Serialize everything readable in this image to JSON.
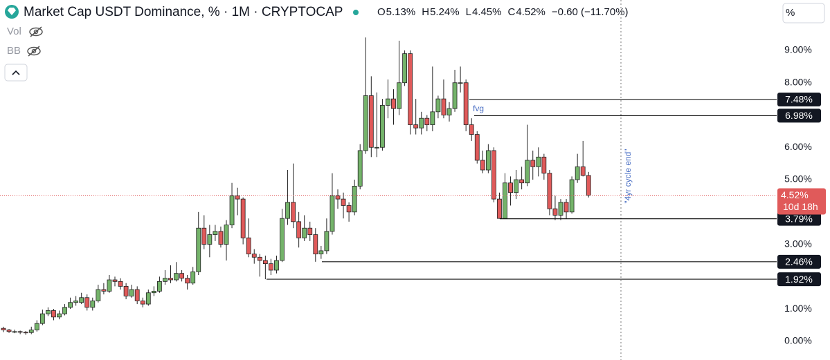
{
  "chart_data": {
    "type": "candlestick",
    "title": "Market Cap USDT Dominance, % · 1M · CRYPTOCAP",
    "legend_ohlc": [
      {
        "label": "O",
        "value": "5.13%"
      },
      {
        "label": "H",
        "value": "5.24%"
      },
      {
        "label": "L",
        "value": "4.45%"
      },
      {
        "label": "C",
        "value": "4.52%"
      }
    ],
    "change": "−0.60 (−11.70%)",
    "indicators": [
      "Vol",
      "BB"
    ],
    "scale_button": "%",
    "up_color": "#74b36a",
    "down_color": "#e05a5a",
    "ylim": [
      -0.58,
      10.56
    ],
    "yticks": [
      {
        "value": 0,
        "label": "0.00%"
      },
      {
        "value": 1,
        "label": "1.00%"
      },
      {
        "value": 3,
        "label": "3.00%"
      },
      {
        "value": 5,
        "label": "5.00%"
      },
      {
        "value": 6,
        "label": "6.00%"
      },
      {
        "value": 8,
        "label": "8.00%"
      },
      {
        "value": 9,
        "label": "9.00%"
      }
    ],
    "levels": [
      {
        "value": 7.48,
        "label": "7.48%"
      },
      {
        "value": 6.98,
        "label": "6.98%"
      },
      {
        "value": 3.79,
        "label": "3.79%"
      },
      {
        "value": 2.46,
        "label": "2.46%"
      },
      {
        "value": 1.92,
        "label": "1.92%"
      }
    ],
    "last_price": {
      "value": 4.52,
      "label": "4.52%",
      "countdown": "10d 18h"
    },
    "annotations": [
      "fvg",
      "\"4yr cycle end\""
    ],
    "ohlc": [
      [
        0.4,
        0.45,
        0.28,
        0.35
      ],
      [
        0.35,
        0.38,
        0.26,
        0.3
      ],
      [
        0.3,
        0.36,
        0.25,
        0.3
      ],
      [
        0.3,
        0.33,
        0.22,
        0.28
      ],
      [
        0.28,
        0.32,
        0.2,
        0.27
      ],
      [
        0.27,
        0.45,
        0.22,
        0.35
      ],
      [
        0.35,
        0.65,
        0.3,
        0.55
      ],
      [
        0.55,
        0.98,
        0.5,
        0.85
      ],
      [
        0.85,
        1.05,
        0.78,
        0.95
      ],
      [
        0.95,
        1.0,
        0.65,
        0.75
      ],
      [
        0.75,
        0.95,
        0.68,
        0.85
      ],
      [
        0.85,
        1.15,
        0.8,
        1.05
      ],
      [
        1.05,
        1.35,
        1.0,
        1.2
      ],
      [
        1.2,
        1.4,
        1.1,
        1.25
      ],
      [
        1.2,
        1.5,
        1.15,
        1.35
      ],
      [
        1.35,
        1.45,
        0.95,
        1.05
      ],
      [
        1.05,
        1.35,
        0.95,
        1.25
      ],
      [
        1.25,
        1.75,
        1.2,
        1.6
      ],
      [
        1.6,
        1.8,
        1.45,
        1.55
      ],
      [
        1.55,
        2.05,
        1.5,
        1.9
      ],
      [
        1.9,
        2.0,
        1.7,
        1.85
      ],
      [
        1.85,
        1.95,
        1.6,
        1.7
      ],
      [
        1.7,
        1.8,
        1.3,
        1.4
      ],
      [
        1.4,
        1.75,
        1.35,
        1.6
      ],
      [
        1.6,
        1.7,
        1.15,
        1.25
      ],
      [
        1.25,
        1.35,
        1.05,
        1.15
      ],
      [
        1.15,
        1.6,
        1.1,
        1.5
      ],
      [
        1.5,
        1.7,
        1.4,
        1.55
      ],
      [
        1.55,
        2.0,
        1.5,
        1.85
      ],
      [
        1.85,
        2.2,
        1.75,
        1.95
      ],
      [
        1.95,
        2.35,
        1.8,
        1.9
      ],
      [
        1.9,
        2.45,
        1.85,
        2.1
      ],
      [
        2.1,
        2.2,
        1.85,
        1.95
      ],
      [
        1.95,
        2.05,
        1.6,
        1.8
      ],
      [
        1.8,
        2.3,
        1.75,
        2.15
      ],
      [
        2.15,
        4.0,
        2.05,
        3.5
      ],
      [
        3.5,
        3.9,
        2.85,
        3.0
      ],
      [
        3.0,
        3.6,
        2.6,
        3.3
      ],
      [
        3.3,
        3.6,
        3.1,
        3.4
      ],
      [
        3.4,
        3.55,
        2.9,
        3.0
      ],
      [
        3.0,
        3.75,
        2.5,
        3.6
      ],
      [
        3.6,
        4.9,
        3.5,
        4.5
      ],
      [
        4.5,
        4.75,
        3.9,
        4.4
      ],
      [
        4.4,
        4.45,
        3.0,
        3.2
      ],
      [
        3.2,
        3.8,
        2.6,
        2.7
      ],
      [
        2.7,
        2.85,
        2.4,
        2.6
      ],
      [
        2.6,
        2.7,
        2.0,
        2.5
      ],
      [
        2.5,
        2.65,
        1.92,
        2.4
      ],
      [
        2.4,
        2.55,
        2.05,
        2.2
      ],
      [
        2.2,
        2.65,
        2.1,
        2.5
      ],
      [
        2.5,
        4.1,
        2.45,
        3.8
      ],
      [
        3.8,
        5.3,
        3.6,
        4.3
      ],
      [
        4.3,
        5.5,
        3.5,
        3.7
      ],
      [
        3.7,
        4.0,
        2.9,
        3.2
      ],
      [
        3.2,
        3.9,
        3.1,
        3.5
      ],
      [
        3.5,
        3.7,
        3.1,
        3.3
      ],
      [
        3.3,
        3.5,
        2.46,
        2.7
      ],
      [
        2.7,
        2.95,
        2.55,
        2.8
      ],
      [
        2.8,
        3.8,
        2.7,
        3.4
      ],
      [
        3.4,
        5.2,
        3.3,
        4.5
      ],
      [
        4.5,
        4.7,
        4.1,
        4.4
      ],
      [
        4.4,
        4.6,
        3.8,
        4.2
      ],
      [
        4.2,
        4.3,
        3.7,
        4.0
      ],
      [
        4.0,
        5.0,
        3.9,
        4.8
      ],
      [
        4.8,
        6.1,
        4.7,
        5.9
      ],
      [
        5.9,
        9.4,
        5.8,
        7.6
      ],
      [
        7.6,
        8.2,
        5.7,
        6.0
      ],
      [
        6.0,
        7.7,
        5.7,
        6.0
      ],
      [
        6.0,
        7.5,
        5.9,
        7.3
      ],
      [
        7.3,
        8.1,
        6.9,
        7.5
      ],
      [
        7.5,
        7.8,
        6.7,
        7.2
      ],
      [
        7.2,
        9.3,
        7.0,
        8.0
      ],
      [
        8.0,
        9.0,
        7.9,
        8.9
      ],
      [
        8.9,
        9.0,
        6.4,
        6.7
      ],
      [
        6.7,
        7.5,
        6.4,
        6.6
      ],
      [
        6.6,
        7.1,
        6.4,
        6.9
      ],
      [
        6.9,
        7.0,
        6.5,
        6.7
      ],
      [
        6.7,
        8.5,
        6.5,
        7.1
      ],
      [
        7.1,
        7.6,
        6.9,
        7.5
      ],
      [
        7.5,
        8.1,
        6.9,
        7.0
      ],
      [
        7.0,
        7.4,
        6.8,
        7.2
      ],
      [
        7.2,
        8.4,
        7.1,
        8.0
      ],
      [
        8.0,
        8.5,
        7.7,
        8.0
      ],
      [
        8.0,
        8.1,
        6.5,
        6.7
      ],
      [
        6.7,
        6.9,
        6.2,
        6.4
      ],
      [
        6.4,
        6.5,
        5.5,
        5.6
      ],
      [
        5.6,
        5.9,
        5.2,
        5.3
      ],
      [
        5.3,
        6.1,
        5.2,
        5.9
      ],
      [
        5.9,
        6.0,
        4.3,
        4.4
      ],
      [
        4.4,
        4.6,
        3.79,
        3.8
      ],
      [
        3.8,
        5.2,
        3.79,
        4.9
      ],
      [
        4.9,
        5.1,
        4.2,
        4.6
      ],
      [
        4.6,
        5.3,
        4.4,
        5.0
      ],
      [
        5.0,
        5.4,
        4.7,
        4.9
      ],
      [
        4.9,
        6.7,
        4.8,
        5.6
      ],
      [
        5.6,
        5.9,
        5.0,
        5.4
      ],
      [
        5.4,
        6.0,
        5.1,
        5.7
      ],
      [
        5.7,
        5.8,
        5.0,
        5.2
      ],
      [
        5.2,
        5.3,
        3.9,
        4.1
      ],
      [
        4.1,
        4.5,
        3.75,
        3.9
      ],
      [
        3.9,
        4.4,
        3.75,
        4.3
      ],
      [
        4.3,
        4.4,
        3.8,
        4.0
      ],
      [
        4.0,
        5.1,
        3.95,
        5.0
      ],
      [
        5.0,
        5.8,
        4.9,
        5.4
      ],
      [
        5.4,
        6.2,
        5.1,
        5.13
      ],
      [
        5.13,
        5.24,
        4.45,
        4.52
      ]
    ]
  }
}
